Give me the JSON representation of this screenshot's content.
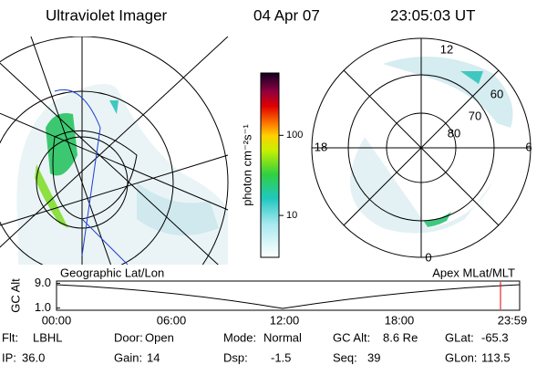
{
  "header": {
    "title": "Ultraviolet Imager",
    "date": "04 Apr 07",
    "time": "23:05:03 UT"
  },
  "colorbar": {
    "label": "photon cm⁻²s⁻¹",
    "ticks": [
      100,
      10
    ],
    "lim": [
      3,
      600
    ],
    "log": true
  },
  "polar": {
    "hour_labels": [
      "12",
      "18",
      "6",
      "0"
    ],
    "lat_labels": [
      "60",
      "70",
      "80"
    ]
  },
  "timeline": {
    "left_label": "Geographic Lat/Lon",
    "right_label": "Apex MLat/MLT",
    "axis_label": "GC Alt",
    "yticks": [
      {
        "value": 9,
        "label": "9.0"
      },
      {
        "value": 1,
        "label": "1.0"
      }
    ],
    "ylim": [
      0.3,
      9.7
    ],
    "xticks": [
      "00:00",
      "06:00",
      "12:00",
      "18:00",
      "23:59"
    ]
  },
  "footer": [
    [
      [
        "Flt:",
        "LBHL"
      ],
      [
        "Door:",
        "Open"
      ],
      [
        "Mode:",
        "Normal"
      ],
      [
        "GC Alt:",
        "8.6 Re"
      ],
      [
        "GLat:",
        "-65.3"
      ]
    ],
    [
      [
        "IP:",
        "36.0"
      ],
      [
        "Gain:",
        "14"
      ],
      [
        "Dsp:",
        "-1.5"
      ],
      [
        "Seq:",
        "39"
      ],
      [
        "GLon:",
        "113.5"
      ]
    ]
  ]
}
